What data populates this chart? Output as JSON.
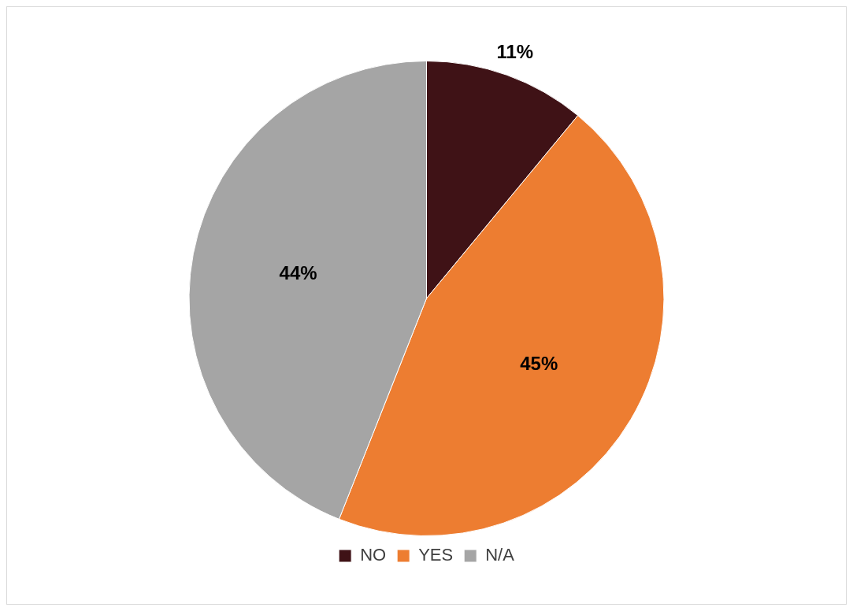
{
  "chart_data": {
    "type": "pie",
    "categories": [
      "NO",
      "YES",
      "N/A"
    ],
    "values": [
      11,
      45,
      44
    ],
    "colors": [
      "#3f1216",
      "#ed7d31",
      "#a5a5a5"
    ],
    "value_labels": [
      "11%",
      "45%",
      "44%"
    ],
    "legend": "bottom"
  }
}
